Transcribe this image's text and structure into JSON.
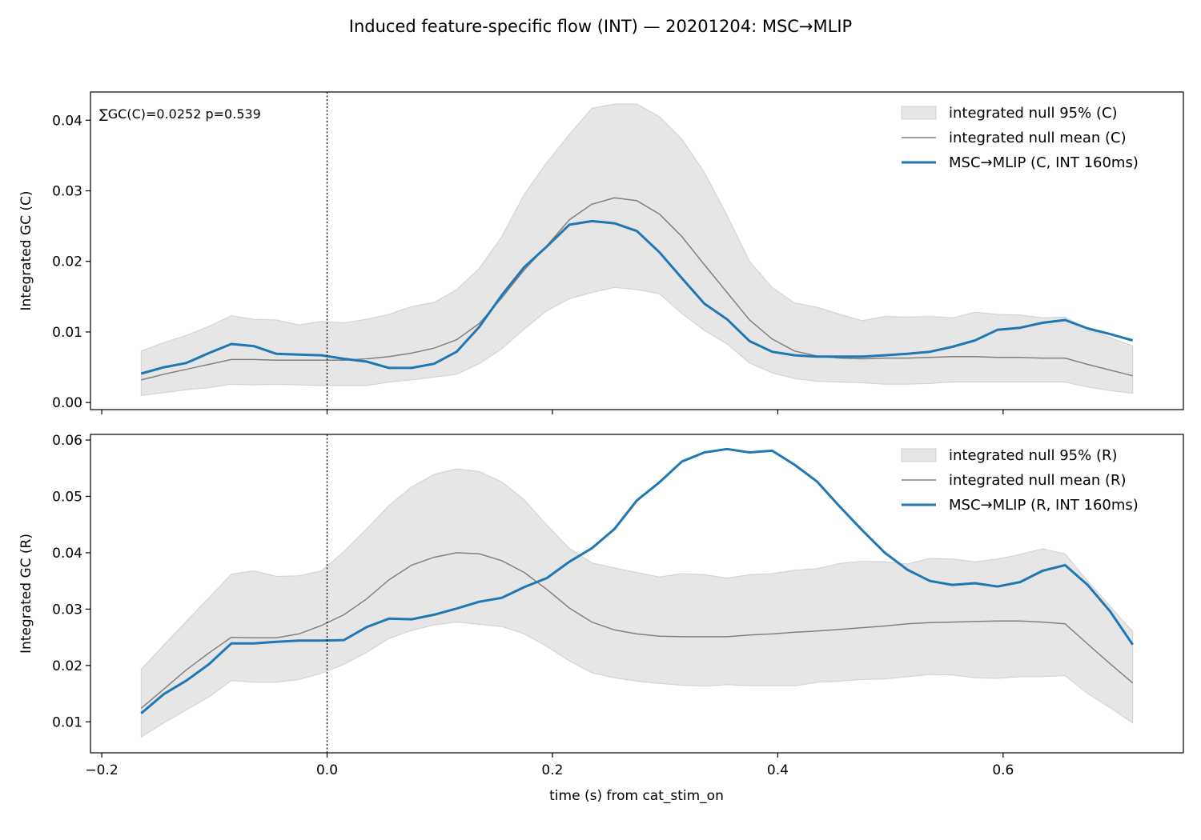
{
  "figure_title": "Induced feature-specific flow (INT) — 20201204: MSC→MLIP",
  "xlabel": "time (s) from cat_stim_on",
  "colors": {
    "series": "#1f77b4",
    "null_mean": "#808080",
    "null_band": "#e6e6e6",
    "null_band_edge": "#d0d0d0",
    "axes": "#000000"
  },
  "chart_data": [
    {
      "type": "line",
      "ylabel": "Integrated GC (C)",
      "annotation": "∑GC(C)=0.0252  p=0.539",
      "xlim": [
        -0.21,
        0.76
      ],
      "ylim": [
        -0.001,
        0.044
      ],
      "x_ticks": [
        -0.2,
        0.0,
        0.2,
        0.4,
        0.6
      ],
      "x_tick_labels_visible": false,
      "y_ticks": [
        0.0,
        0.01,
        0.02,
        0.03,
        0.04
      ],
      "y_tick_labels": [
        "0.00",
        "0.01",
        "0.02",
        "0.03",
        "0.04"
      ],
      "vline_x": 0.0,
      "legend_position": "top-right",
      "legend": [
        "integrated null 95% (C)",
        "integrated null mean (C)",
        "MSC→MLIP (C, INT 160ms)"
      ],
      "x": [
        -0.165,
        -0.145,
        -0.125,
        -0.105,
        -0.085,
        -0.065,
        -0.045,
        -0.025,
        -0.005,
        0.015,
        0.035,
        0.055,
        0.075,
        0.095,
        0.115,
        0.135,
        0.155,
        0.175,
        0.195,
        0.215,
        0.235,
        0.255,
        0.275,
        0.295,
        0.315,
        0.335,
        0.355,
        0.375,
        0.395,
        0.415,
        0.435,
        0.455,
        0.475,
        0.495,
        0.515,
        0.535,
        0.555,
        0.575,
        0.595,
        0.615,
        0.635,
        0.655,
        0.675,
        0.695,
        0.715
      ],
      "null_upper": [
        0.0073,
        0.0085,
        0.0095,
        0.0108,
        0.0123,
        0.0118,
        0.0117,
        0.011,
        0.0115,
        0.0113,
        0.0118,
        0.0125,
        0.0136,
        0.0142,
        0.016,
        0.019,
        0.0235,
        0.0295,
        0.034,
        0.038,
        0.0417,
        0.0423,
        0.0423,
        0.0405,
        0.0373,
        0.0326,
        0.0265,
        0.02,
        0.0163,
        0.0141,
        0.0135,
        0.0125,
        0.0116,
        0.0122,
        0.0121,
        0.0122,
        0.012,
        0.0128,
        0.0125,
        0.0124,
        0.012,
        0.0121,
        0.0104,
        0.0092,
        0.008
      ],
      "null_lower": [
        0.001,
        0.0014,
        0.0018,
        0.0021,
        0.0026,
        0.0025,
        0.0026,
        0.0025,
        0.0024,
        0.0024,
        0.0024,
        0.0029,
        0.0032,
        0.0036,
        0.004,
        0.0055,
        0.0076,
        0.0104,
        0.013,
        0.0147,
        0.0156,
        0.0163,
        0.016,
        0.0154,
        0.0126,
        0.0102,
        0.0083,
        0.0056,
        0.0042,
        0.0034,
        0.003,
        0.0029,
        0.0028,
        0.0026,
        0.0026,
        0.0027,
        0.0029,
        0.0029,
        0.0029,
        0.0029,
        0.0029,
        0.0029,
        0.0022,
        0.0017,
        0.0013
      ],
      "null_mean": [
        0.0032,
        0.004,
        0.0047,
        0.0054,
        0.0061,
        0.0061,
        0.006,
        0.006,
        0.006,
        0.006,
        0.0062,
        0.0065,
        0.007,
        0.0077,
        0.0089,
        0.0112,
        0.0148,
        0.0188,
        0.0222,
        0.0259,
        0.0281,
        0.029,
        0.0286,
        0.0267,
        0.0235,
        0.0195,
        0.0156,
        0.0117,
        0.009,
        0.0073,
        0.0066,
        0.0063,
        0.0062,
        0.0063,
        0.0063,
        0.0064,
        0.0065,
        0.0065,
        0.0064,
        0.0064,
        0.0063,
        0.0063,
        0.0054,
        0.0046,
        0.0038
      ],
      "series": [
        {
          "name": "MSC→MLIP (C, INT 160ms)",
          "values": [
            0.0041,
            0.005,
            0.0056,
            0.007,
            0.0083,
            0.008,
            0.0069,
            0.0068,
            0.0067,
            0.0062,
            0.0058,
            0.0049,
            0.0049,
            0.0055,
            0.0072,
            0.0107,
            0.0152,
            0.0192,
            0.0221,
            0.0252,
            0.0257,
            0.0254,
            0.0243,
            0.0213,
            0.0176,
            0.014,
            0.0118,
            0.0087,
            0.0072,
            0.0067,
            0.0065,
            0.0065,
            0.0065,
            0.0067,
            0.0069,
            0.0072,
            0.0079,
            0.0088,
            0.0103,
            0.0106,
            0.0113,
            0.0117,
            0.0105,
            0.0097,
            0.0088
          ]
        }
      ]
    },
    {
      "type": "line",
      "ylabel": "Integrated GC (R)",
      "xlim": [
        -0.21,
        0.76
      ],
      "ylim": [
        0.0045,
        0.061
      ],
      "x_ticks": [
        -0.2,
        0.0,
        0.2,
        0.4,
        0.6
      ],
      "x_tick_labels": [
        "−0.2",
        "0.0",
        "0.2",
        "0.4",
        "0.6"
      ],
      "y_ticks": [
        0.01,
        0.02,
        0.03,
        0.04,
        0.05,
        0.06
      ],
      "y_tick_labels": [
        "0.01",
        "0.02",
        "0.03",
        "0.04",
        "0.05",
        "0.06"
      ],
      "vline_x": 0.0,
      "legend_position": "top-right",
      "legend": [
        "integrated null 95% (R)",
        "integrated null mean (R)",
        "MSC→MLIP (R, INT 160ms)"
      ],
      "x": [
        -0.165,
        -0.145,
        -0.125,
        -0.105,
        -0.085,
        -0.065,
        -0.045,
        -0.025,
        -0.005,
        0.015,
        0.035,
        0.055,
        0.075,
        0.095,
        0.115,
        0.135,
        0.155,
        0.175,
        0.195,
        0.215,
        0.235,
        0.255,
        0.275,
        0.295,
        0.315,
        0.335,
        0.355,
        0.375,
        0.395,
        0.415,
        0.435,
        0.455,
        0.475,
        0.495,
        0.515,
        0.535,
        0.555,
        0.575,
        0.595,
        0.615,
        0.635,
        0.655,
        0.675,
        0.695,
        0.715
      ],
      "null_upper": [
        0.0193,
        0.0236,
        0.0278,
        0.032,
        0.0362,
        0.0368,
        0.0358,
        0.0359,
        0.0368,
        0.0402,
        0.0442,
        0.0484,
        0.0517,
        0.0539,
        0.0549,
        0.0544,
        0.0526,
        0.0494,
        0.0449,
        0.0408,
        0.0382,
        0.0373,
        0.0365,
        0.0357,
        0.0363,
        0.0361,
        0.0355,
        0.0361,
        0.0363,
        0.0369,
        0.0372,
        0.0381,
        0.0385,
        0.0384,
        0.038,
        0.039,
        0.0389,
        0.0384,
        0.0389,
        0.0397,
        0.0407,
        0.0398,
        0.035,
        0.0305,
        0.026
      ],
      "null_lower": [
        0.0073,
        0.0098,
        0.0121,
        0.0144,
        0.0173,
        0.017,
        0.017,
        0.0175,
        0.0186,
        0.0202,
        0.0223,
        0.0248,
        0.0262,
        0.0272,
        0.0277,
        0.0273,
        0.0269,
        0.0256,
        0.0234,
        0.0208,
        0.0187,
        0.0178,
        0.0172,
        0.0168,
        0.0165,
        0.0163,
        0.0166,
        0.0164,
        0.0164,
        0.0164,
        0.017,
        0.0172,
        0.0175,
        0.0176,
        0.018,
        0.0184,
        0.0183,
        0.0178,
        0.0177,
        0.018,
        0.018,
        0.0182,
        0.015,
        0.0125,
        0.0098
      ],
      "null_mean": [
        0.0124,
        0.0158,
        0.0192,
        0.0222,
        0.025,
        0.0249,
        0.0249,
        0.0256,
        0.0271,
        0.029,
        0.0318,
        0.0352,
        0.0378,
        0.0392,
        0.04,
        0.0398,
        0.0386,
        0.0365,
        0.0335,
        0.0302,
        0.0277,
        0.0263,
        0.0256,
        0.0252,
        0.0251,
        0.0251,
        0.0251,
        0.0254,
        0.0256,
        0.0259,
        0.0261,
        0.0264,
        0.0267,
        0.027,
        0.0274,
        0.0276,
        0.0277,
        0.0278,
        0.0279,
        0.0279,
        0.0277,
        0.0274,
        0.0238,
        0.0203,
        0.0169
      ],
      "series": [
        {
          "name": "MSC→MLIP (R, INT 160ms)",
          "values": [
            0.0115,
            0.0149,
            0.0173,
            0.0202,
            0.0239,
            0.0239,
            0.0242,
            0.0244,
            0.0244,
            0.0245,
            0.0268,
            0.0283,
            0.0282,
            0.029,
            0.0301,
            0.0313,
            0.032,
            0.0339,
            0.0355,
            0.0384,
            0.0408,
            0.0442,
            0.0493,
            0.0525,
            0.0562,
            0.0578,
            0.0584,
            0.0578,
            0.0581,
            0.0556,
            0.0526,
            0.0482,
            0.044,
            0.04,
            0.037,
            0.035,
            0.0343,
            0.0346,
            0.034,
            0.0348,
            0.0368,
            0.0378,
            0.0343,
            0.0296,
            0.0237
          ]
        }
      ]
    }
  ]
}
